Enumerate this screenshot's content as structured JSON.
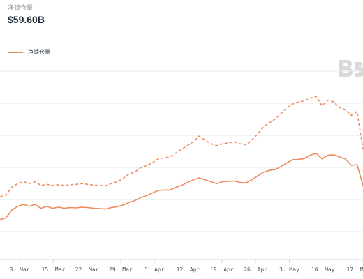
{
  "header": {
    "metric_label": "净锁仓量",
    "metric_value": "$59.60B"
  },
  "legend": {
    "series_label": "净锁仓量"
  },
  "colors": {
    "series": "#f08a5d",
    "grid": "#e5e7eb",
    "watermark": "#d9d9d9"
  },
  "watermark_icon": "brand-logo-icon",
  "chart_data": {
    "type": "line",
    "grid": true,
    "legend_position": "top-left",
    "x_tick_labels": [
      "8. Mar",
      "15. Mar",
      "22. Mar",
      "29. Mar",
      "5. Apr",
      "12. Apr",
      "19. Apr",
      "26. Apr",
      "3. May",
      "10. May",
      "17. Ma"
    ],
    "series": [
      {
        "name": "净锁仓量",
        "style": "solid",
        "values": [
          50.5,
          51.0,
          53.0,
          54.0,
          54.5,
          54.0,
          54.5,
          53.5,
          54.0,
          53.5,
          53.8,
          53.5,
          53.7,
          53.6,
          53.8,
          53.7,
          53.5,
          53.4,
          53.3,
          53.7,
          53.9,
          54.3,
          55.0,
          55.5,
          56.3,
          56.8,
          57.5,
          58.2,
          58.3,
          58.3,
          59.0,
          59.5,
          60.3,
          61.0,
          61.5,
          61.0,
          60.5,
          60.0,
          60.5,
          60.6,
          60.7,
          60.3,
          60.2,
          61.0,
          62.0,
          63.0,
          63.5,
          63.7,
          64.5,
          65.5,
          66.3,
          66.4,
          66.6,
          67.5,
          68.0,
          66.5,
          67.5,
          67.6,
          67.0,
          66.5,
          64.8,
          65.0,
          59.5
        ]
      },
      {
        "name": "",
        "style": "dashed",
        "values": [
          56.5,
          57.0,
          59.0,
          60.0,
          60.5,
          60.0,
          60.5,
          59.5,
          59.8,
          59.5,
          59.7,
          59.5,
          59.7,
          59.8,
          60.0,
          59.8,
          59.6,
          59.5,
          59.4,
          60.0,
          60.5,
          61.3,
          62.5,
          63.0,
          64.2,
          64.7,
          65.4,
          66.5,
          66.8,
          67.0,
          68.0,
          69.0,
          70.0,
          71.0,
          72.5,
          71.5,
          70.5,
          70.0,
          70.5,
          70.7,
          71.0,
          70.5,
          70.2,
          71.5,
          73.0,
          75.0,
          76.0,
          77.0,
          78.5,
          80.0,
          81.0,
          81.5,
          81.8,
          82.5,
          83.0,
          80.5,
          82.0,
          81.5,
          80.0,
          79.5,
          78.0,
          79.0,
          69.0
        ]
      }
    ],
    "ylim": [
      40,
      90
    ],
    "x_label": "",
    "y_label": ""
  }
}
